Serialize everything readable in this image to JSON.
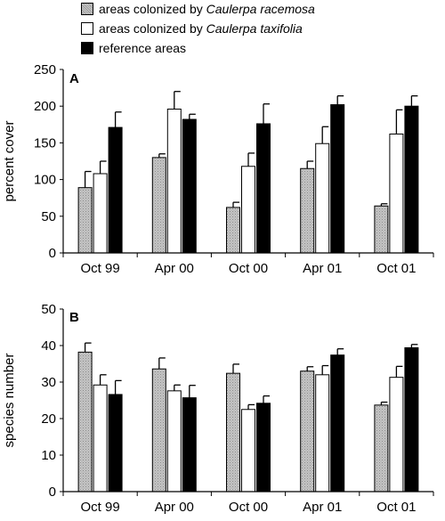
{
  "legend": [
    {
      "prefix": "areas colonized by ",
      "italic": "Caulerpa racemosa",
      "fill": "#bdbdbd"
    },
    {
      "prefix": "areas colonized by ",
      "italic": "Caulerpa taxifolia",
      "fill": "#ffffff"
    },
    {
      "prefix": "reference areas",
      "italic": "",
      "fill": "#000000"
    }
  ],
  "chart_data": [
    {
      "type": "bar",
      "panel_letter": "A",
      "ylabel": "percent cover",
      "ylim": [
        0,
        250
      ],
      "yticks": [
        0,
        50,
        100,
        150,
        200,
        250
      ],
      "categories": [
        "Oct 99",
        "Apr 00",
        "Oct 00",
        "Apr 01",
        "Oct 01"
      ],
      "series": [
        {
          "name": "areas colonized by Caulerpa racemosa",
          "color": "#bdbdbd",
          "values": [
            89,
            130,
            62,
            115,
            64
          ],
          "error": [
            22,
            5,
            7,
            10,
            3
          ]
        },
        {
          "name": "areas colonized by Caulerpa taxifolia",
          "color": "#ffffff",
          "values": [
            108,
            196,
            118,
            149,
            162
          ],
          "error": [
            17,
            24,
            18,
            23,
            33
          ]
        },
        {
          "name": "reference areas",
          "color": "#000000",
          "values": [
            171,
            182,
            176,
            202,
            200
          ],
          "error": [
            21,
            7,
            27,
            12,
            14
          ]
        }
      ]
    },
    {
      "type": "bar",
      "panel_letter": "B",
      "ylabel": "species number",
      "ylim": [
        0,
        50
      ],
      "yticks": [
        0,
        10,
        20,
        30,
        40,
        50
      ],
      "categories": [
        "Oct 99",
        "Apr 00",
        "Oct 00",
        "Apr 01",
        "Oct 01"
      ],
      "series": [
        {
          "name": "areas colonized by Caulerpa racemosa",
          "color": "#bdbdbd",
          "values": [
            38.2,
            33.6,
            32.4,
            33.0,
            23.7
          ],
          "error": [
            2.5,
            3.0,
            2.5,
            1.2,
            0.8
          ]
        },
        {
          "name": "areas colonized by Caulerpa taxifolia",
          "color": "#ffffff",
          "values": [
            29.2,
            27.6,
            22.5,
            32.0,
            31.3
          ],
          "error": [
            2.8,
            1.6,
            1.3,
            2.5,
            3.0
          ]
        },
        {
          "name": "reference areas",
          "color": "#000000",
          "values": [
            26.6,
            25.7,
            24.2,
            37.4,
            39.4
          ],
          "error": [
            3.8,
            3.4,
            2.0,
            1.7,
            0.9
          ]
        }
      ]
    }
  ]
}
